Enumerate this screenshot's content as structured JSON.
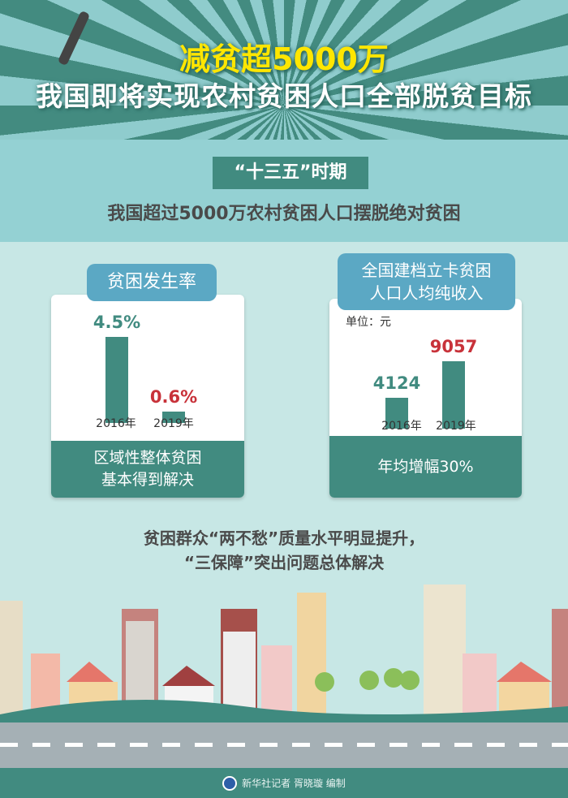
{
  "header": {
    "title": "减贫超5000万",
    "subtitle": "我国即将实现农村贫困人口全部脱贫目标"
  },
  "period": {
    "label": "“十三五”时期",
    "statement": "我国超过5000万农村贫困人口摆脱绝对贫困"
  },
  "chart_data": [
    {
      "type": "bar",
      "title": "贫困发生率",
      "categories": [
        "2016年",
        "2019年"
      ],
      "values": [
        4.5,
        0.6
      ],
      "value_labels": [
        "4.5%",
        "0.6%"
      ],
      "value_colors": [
        "#418b80",
        "#c8323a"
      ],
      "footer": [
        "区域性整体贫困",
        "基本得到解决"
      ]
    },
    {
      "type": "bar",
      "title": "全国建档立卡贫困人口人均纯收入",
      "title_lines": [
        "全国建档立卡贫困",
        "人口人均纯收入"
      ],
      "unit": "单位：元",
      "categories": [
        "2016年",
        "2019年"
      ],
      "values": [
        4124,
        9057
      ],
      "value_labels": [
        "4124",
        "9057"
      ],
      "value_colors": [
        "#418b80",
        "#c8323a"
      ],
      "footer": [
        "年均增幅30%"
      ]
    }
  ],
  "middle": {
    "line1": "贫困群众“两不愁”质量水平明显提升，",
    "line2": "“三保障”突出问题总体解决"
  },
  "footer": {
    "credit": "新华社记者 胥晓璇 编制"
  },
  "colors": {
    "teal": "#418b80",
    "label_blue": "#5ba8c4",
    "title_yellow": "#ffe600",
    "highlight_red": "#c8323a"
  }
}
